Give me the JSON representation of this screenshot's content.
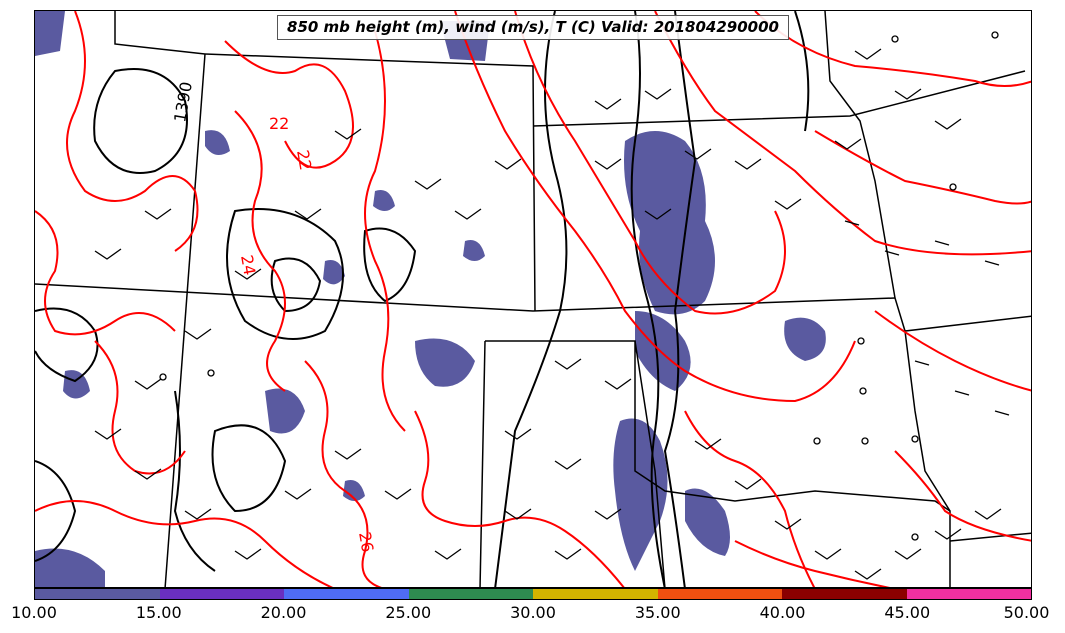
{
  "title": "850 mb height (m), wind (m/s), T (C) Valid: 201804290000",
  "contour_labels": {
    "height": [
      "1390"
    ],
    "temperature": [
      "22",
      "22",
      "24",
      "26"
    ]
  },
  "colorbar": {
    "ticks": [
      "10.00",
      "15.00",
      "20.00",
      "25.00",
      "30.00",
      "35.00",
      "40.00",
      "45.00",
      "50.00"
    ],
    "colors": [
      "#5a5aa0",
      "#6a2fc0",
      "#4f6cf5",
      "#2e8b50",
      "#d2b400",
      "#f05010",
      "#8b0000",
      "#f030a0"
    ]
  },
  "colors": {
    "height_contour": "#000000",
    "temperature_contour": "#ff0000",
    "shading": "#5a5aa0",
    "state_border": "#000000"
  }
}
